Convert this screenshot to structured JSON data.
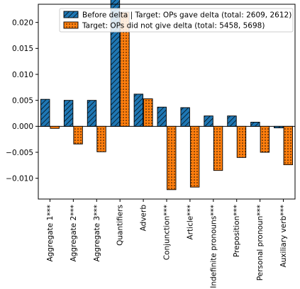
{
  "chart_data": {
    "type": "bar",
    "title": "",
    "xlabel": "",
    "ylabel": "",
    "ylim": [
      -0.014,
      0.0235
    ],
    "yticks": [
      -0.01,
      -0.005,
      0.0,
      0.005,
      0.01,
      0.015,
      0.02
    ],
    "ytick_labels": [
      "−0.010",
      "−0.005",
      "0.000",
      "0.005",
      "0.010",
      "0.015",
      "0.020"
    ],
    "grid": false,
    "legend_position": "top-right",
    "categories": [
      "Aggregate 1***",
      "Aggregate 2***",
      "Aggregate 3***",
      "Quantifiers",
      "Adverb",
      "Conjunction***",
      "Article***",
      "Indefinite pronouns***",
      "Preposition***",
      "Personal pronoun***",
      "Auxiliary verb***"
    ],
    "series": [
      {
        "name": "Before delta | Target: OPs gave delta (total: 2609, 2612)",
        "color": "#1f77b4",
        "pattern": "diagonal-hatch",
        "values": [
          0.0052,
          0.005,
          0.005,
          0.0252,
          0.0062,
          0.0037,
          0.0036,
          0.002,
          0.002,
          0.0008,
          -0.0003
        ]
      },
      {
        "name": "Target: OPs did not give delta (total: 5458, 5698)",
        "color": "#ff7f0e",
        "pattern": "dots",
        "values": [
          -0.0004,
          -0.0034,
          -0.0049,
          0.022,
          0.0053,
          -0.0122,
          -0.0117,
          -0.0085,
          -0.006,
          -0.005,
          -0.0074
        ]
      }
    ]
  }
}
